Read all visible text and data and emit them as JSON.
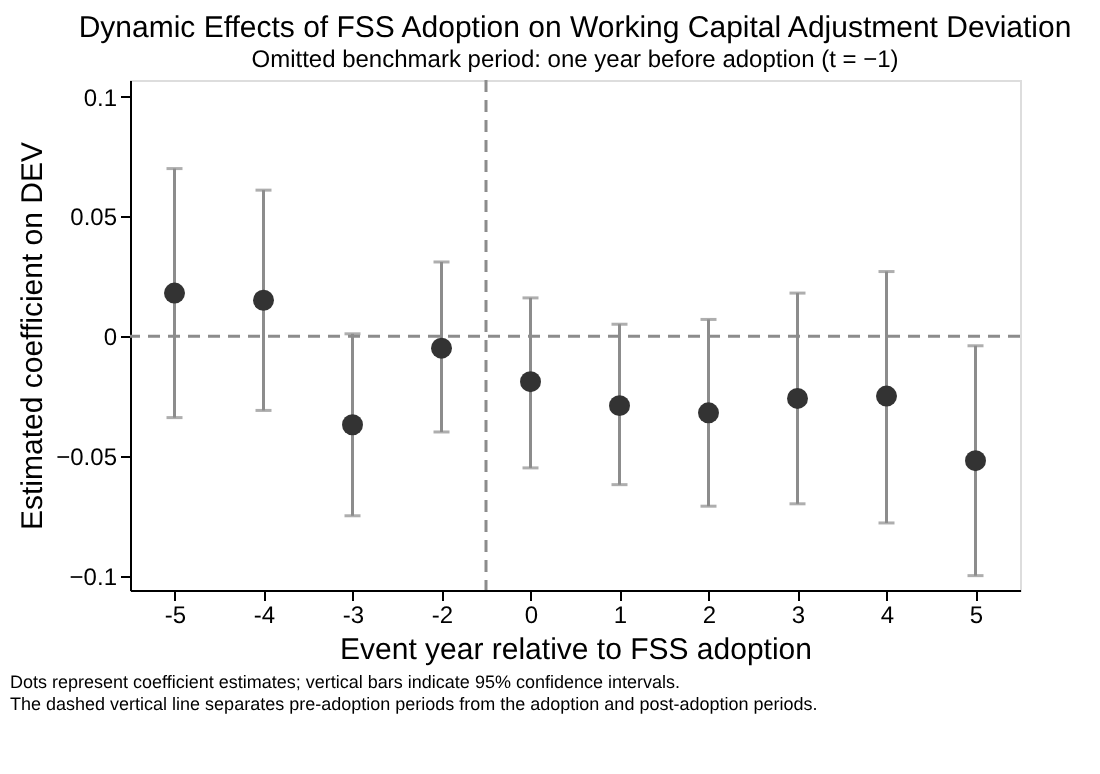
{
  "chart_data": {
    "type": "scatter",
    "title": "Dynamic Effects of FSS Adoption on Working Capital Adjustment Deviation",
    "subtitle": "Omitted benchmark period: one year before adoption (t = −1)",
    "xlabel": "Event year relative to FSS adoption",
    "ylabel": "Estimated coefficient on DEV",
    "categories": [
      "-5",
      "-4",
      "-3",
      "-2",
      "0",
      "1",
      "2",
      "3",
      "4",
      "5"
    ],
    "series": [
      {
        "color": "#333333",
        "values": [
          0.018,
          0.015,
          -0.037,
          -0.005,
          -0.019,
          -0.029,
          -0.032,
          -0.026,
          -0.025,
          -0.052
        ],
        "errors": [
          [
            -0.034,
            0.07
          ],
          [
            -0.031,
            0.061
          ],
          [
            -0.075,
            0.001
          ],
          [
            -0.04,
            0.031
          ],
          [
            -0.055,
            0.016
          ],
          [
            -0.062,
            0.005
          ],
          [
            -0.071,
            0.007
          ],
          [
            -0.07,
            0.018
          ],
          [
            -0.078,
            0.027
          ],
          [
            -0.1,
            -0.004
          ]
        ]
      }
    ],
    "ylim": [
      -0.106,
      0.107
    ],
    "yticks": [
      -0.1,
      -0.05,
      0,
      0.05,
      0.1
    ],
    "grid": false,
    "ref_lines": [
      {
        "axis": "y",
        "value": 0,
        "color": "#8c8c8c",
        "line_style": "dashed"
      }
    ],
    "annotations": [
      "Dots represent coefficient estimates; vertical bars indicate 95% confidence intervals.",
      "The dashed vertical line separates pre-adoption periods from the adoption and post-adoption periods."
    ]
  }
}
